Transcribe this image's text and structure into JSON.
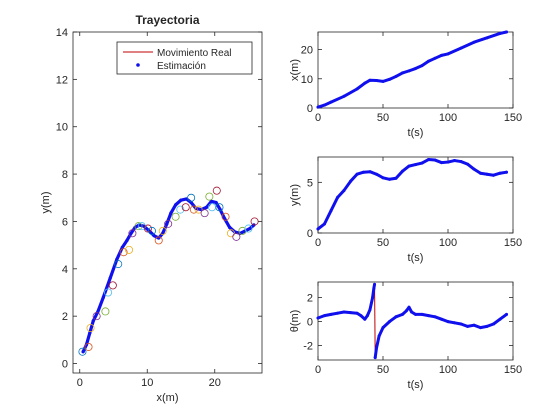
{
  "figure": {
    "colors": {
      "real": "#c00000",
      "est": "#1010ee",
      "axis": "#262626"
    },
    "circle_colors": [
      "#0072bd",
      "#d95319",
      "#edb120",
      "#7e2f8e",
      "#77ac30",
      "#4dbeee",
      "#a2142f"
    ]
  },
  "chart_data": [
    {
      "type": "line",
      "id": "traj",
      "title": "Trayectoria",
      "xlabel": "x(m)",
      "ylabel": "y(m)",
      "xlim": [
        -1,
        27
      ],
      "ylim": [
        -0.4,
        14
      ],
      "xticks": [
        0,
        10,
        20
      ],
      "yticks": [
        0,
        2,
        4,
        6,
        8,
        10,
        12,
        14
      ],
      "legend": {
        "position": "top-right",
        "entries": [
          "Movimiento Real",
          "Estimación"
        ]
      },
      "series": [
        {
          "name": "Movimiento Real",
          "style": "line",
          "points": [
            [
              0.5,
              0.5
            ],
            [
              1,
              0.8
            ],
            [
              1.5,
              1.3
            ],
            [
              2,
              1.8
            ],
            [
              2.7,
              2.2
            ],
            [
              3.5,
              2.8
            ],
            [
              4.5,
              3.6
            ],
            [
              5.5,
              4.4
            ],
            [
              6.3,
              4.9
            ],
            [
              7,
              5.2
            ],
            [
              7.6,
              5.5
            ],
            [
              8.2,
              5.75
            ],
            [
              8.8,
              5.85
            ],
            [
              9.5,
              5.8
            ],
            [
              10.3,
              5.6
            ],
            [
              11,
              5.4
            ],
            [
              11.7,
              5.3
            ],
            [
              12.3,
              5.5
            ],
            [
              12.9,
              5.9
            ],
            [
              13.5,
              6.35
            ],
            [
              14.2,
              6.7
            ],
            [
              15,
              6.9
            ],
            [
              15.8,
              6.95
            ],
            [
              16.5,
              6.8
            ],
            [
              17.2,
              6.55
            ],
            [
              18,
              6.5
            ],
            [
              18.8,
              6.6
            ],
            [
              19.5,
              6.85
            ],
            [
              20.2,
              6.8
            ],
            [
              20.8,
              6.5
            ],
            [
              21.5,
              6.1
            ],
            [
              22.2,
              5.75
            ],
            [
              23,
              5.55
            ],
            [
              23.8,
              5.5
            ],
            [
              24.5,
              5.6
            ],
            [
              25.2,
              5.7
            ],
            [
              25.8,
              5.85
            ]
          ]
        },
        {
          "name": "Estimación",
          "style": "points",
          "points": [
            [
              0.5,
              0.5
            ],
            [
              1,
              0.8
            ],
            [
              1.5,
              1.3
            ],
            [
              2,
              1.8
            ],
            [
              2.7,
              2.2
            ],
            [
              3.5,
              2.8
            ],
            [
              4.5,
              3.6
            ],
            [
              5.5,
              4.4
            ],
            [
              6.3,
              4.9
            ],
            [
              7,
              5.2
            ],
            [
              7.6,
              5.5
            ],
            [
              8.2,
              5.75
            ],
            [
              8.8,
              5.85
            ],
            [
              9.5,
              5.8
            ],
            [
              10.3,
              5.6
            ],
            [
              11,
              5.4
            ],
            [
              11.7,
              5.3
            ],
            [
              12.3,
              5.5
            ],
            [
              12.9,
              5.9
            ],
            [
              13.5,
              6.35
            ],
            [
              14.2,
              6.7
            ],
            [
              15,
              6.9
            ],
            [
              15.8,
              6.95
            ],
            [
              16.5,
              6.8
            ],
            [
              17.2,
              6.55
            ],
            [
              18,
              6.5
            ],
            [
              18.8,
              6.6
            ],
            [
              19.5,
              6.85
            ],
            [
              20.2,
              6.8
            ],
            [
              20.8,
              6.5
            ],
            [
              21.5,
              6.1
            ],
            [
              22.2,
              5.75
            ],
            [
              23,
              5.55
            ],
            [
              23.8,
              5.5
            ],
            [
              24.5,
              5.6
            ],
            [
              25.2,
              5.7
            ],
            [
              25.8,
              5.85
            ]
          ]
        },
        {
          "name": "",
          "style": "circles",
          "points": [
            [
              0.4,
              0.5
            ],
            [
              1.3,
              0.7
            ],
            [
              1.6,
              1.5
            ],
            [
              2.5,
              2.0
            ],
            [
              3.8,
              2.2
            ],
            [
              4.2,
              3.0
            ],
            [
              4.9,
              3.3
            ],
            [
              5.7,
              4.2
            ],
            [
              6.5,
              4.7
            ],
            [
              7.3,
              4.8
            ],
            [
              7.8,
              5.5
            ],
            [
              8.7,
              5.8
            ],
            [
              9.2,
              5.8
            ],
            [
              10.1,
              5.7
            ],
            [
              10.7,
              5.6
            ],
            [
              11.7,
              5.2
            ],
            [
              12.3,
              5.6
            ],
            [
              13.1,
              5.9
            ],
            [
              14.2,
              6.2
            ],
            [
              14.9,
              6.5
            ],
            [
              15.7,
              6.6
            ],
            [
              16.5,
              7.0
            ],
            [
              16.9,
              6.5
            ],
            [
              17.6,
              6.5
            ],
            [
              18.5,
              6.35
            ],
            [
              19.2,
              7.05
            ],
            [
              19.6,
              6.6
            ],
            [
              20.3,
              7.3
            ],
            [
              20.7,
              6.6
            ],
            [
              21.6,
              6.2
            ],
            [
              22.4,
              5.5
            ],
            [
              23.2,
              5.35
            ],
            [
              24.1,
              5.6
            ],
            [
              25.0,
              5.7
            ],
            [
              25.9,
              6.0
            ]
          ]
        }
      ]
    },
    {
      "type": "line",
      "id": "xt",
      "xlabel": "t(s)",
      "ylabel": "x(m)",
      "xlim": [
        0,
        150
      ],
      "ylim": [
        0,
        26
      ],
      "xticks": [
        0,
        50,
        100,
        150
      ],
      "yticks": [
        0,
        10,
        20
      ],
      "series": [
        {
          "points": [
            [
              0,
              0.3
            ],
            [
              5,
              1
            ],
            [
              10,
              2
            ],
            [
              20,
              4
            ],
            [
              30,
              6.5
            ],
            [
              36,
              8.5
            ],
            [
              40,
              9.5
            ],
            [
              45,
              9.4
            ],
            [
              50,
              9.1
            ],
            [
              55,
              9.8
            ],
            [
              60,
              10.8
            ],
            [
              65,
              12
            ],
            [
              70,
              12.7
            ],
            [
              75,
              13.5
            ],
            [
              80,
              14.5
            ],
            [
              85,
              16
            ],
            [
              90,
              17
            ],
            [
              95,
              18
            ],
            [
              100,
              18.5
            ],
            [
              110,
              20.5
            ],
            [
              120,
              22.5
            ],
            [
              130,
              24
            ],
            [
              140,
              25.5
            ],
            [
              145,
              26
            ]
          ]
        }
      ]
    },
    {
      "type": "line",
      "id": "yt",
      "xlabel": "t(s)",
      "ylabel": "y(m)",
      "xlim": [
        0,
        150
      ],
      "ylim": [
        0,
        7.5
      ],
      "xticks": [
        0,
        50,
        100,
        150
      ],
      "yticks": [
        0,
        5
      ],
      "series": [
        {
          "points": [
            [
              0,
              0.4
            ],
            [
              5,
              0.9
            ],
            [
              10,
              2.2
            ],
            [
              15,
              3.5
            ],
            [
              20,
              4.2
            ],
            [
              25,
              5.1
            ],
            [
              30,
              5.8
            ],
            [
              35,
              6.0
            ],
            [
              40,
              6.05
            ],
            [
              45,
              5.8
            ],
            [
              50,
              5.45
            ],
            [
              55,
              5.3
            ],
            [
              60,
              5.4
            ],
            [
              65,
              6.1
            ],
            [
              70,
              6.6
            ],
            [
              75,
              6.75
            ],
            [
              80,
              6.9
            ],
            [
              85,
              7.25
            ],
            [
              90,
              7.2
            ],
            [
              95,
              6.95
            ],
            [
              100,
              7.0
            ],
            [
              105,
              7.15
            ],
            [
              110,
              7.05
            ],
            [
              115,
              6.8
            ],
            [
              120,
              6.3
            ],
            [
              125,
              5.9
            ],
            [
              130,
              5.8
            ],
            [
              135,
              5.7
            ],
            [
              140,
              5.9
            ],
            [
              145,
              6.0
            ]
          ]
        }
      ]
    },
    {
      "type": "line",
      "id": "tht",
      "xlabel": "t(s)",
      "ylabel": "θ(m)",
      "xlim": [
        0,
        150
      ],
      "ylim": [
        -3.2,
        3.3
      ],
      "xticks": [
        0,
        50,
        100,
        150
      ],
      "yticks": [
        -2,
        0,
        2
      ],
      "series": [
        {
          "points": [
            [
              0,
              0.3
            ],
            [
              5,
              0.5
            ],
            [
              10,
              0.6
            ],
            [
              15,
              0.7
            ],
            [
              20,
              0.8
            ],
            [
              25,
              0.75
            ],
            [
              30,
              0.7
            ],
            [
              33,
              0.5
            ],
            [
              36,
              0.2
            ],
            [
              38,
              0.5
            ],
            [
              40,
              1.0
            ],
            [
              42,
              2.0
            ],
            [
              43,
              2.8
            ],
            [
              43.5,
              3.1
            ],
            [
              44,
              -3.0
            ],
            [
              45,
              -2.2
            ],
            [
              47,
              -1.2
            ],
            [
              50,
              -0.5
            ],
            [
              55,
              0.0
            ],
            [
              60,
              0.4
            ],
            [
              65,
              0.6
            ],
            [
              68,
              0.9
            ],
            [
              70,
              1.2
            ],
            [
              72,
              0.8
            ],
            [
              75,
              0.6
            ],
            [
              80,
              0.6
            ],
            [
              85,
              0.5
            ],
            [
              90,
              0.4
            ],
            [
              95,
              0.2
            ],
            [
              100,
              0.0
            ],
            [
              105,
              -0.1
            ],
            [
              110,
              -0.2
            ],
            [
              115,
              -0.4
            ],
            [
              120,
              -0.3
            ],
            [
              125,
              -0.5
            ],
            [
              130,
              -0.4
            ],
            [
              135,
              -0.2
            ],
            [
              140,
              0.2
            ],
            [
              145,
              0.6
            ]
          ]
        }
      ]
    }
  ]
}
